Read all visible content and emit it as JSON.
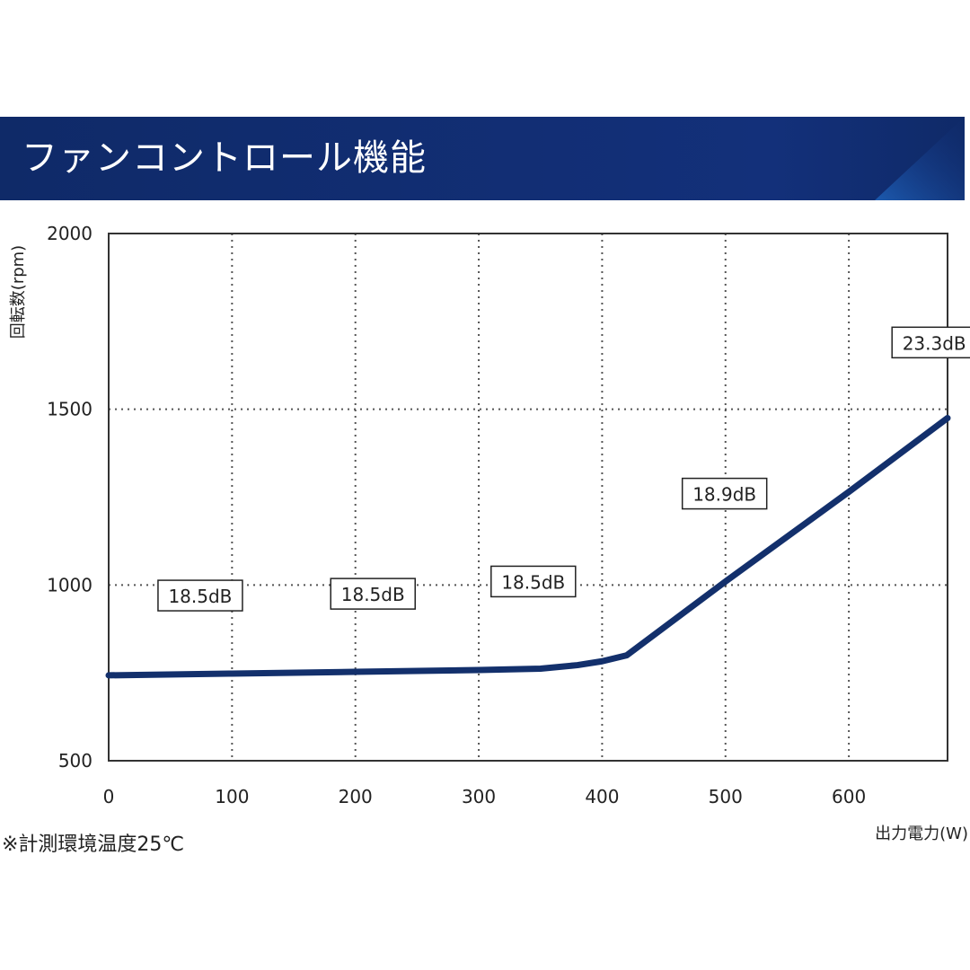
{
  "header": {
    "title": "ファンコントロール機能"
  },
  "footnote": "※計測環境温度25℃",
  "colors": {
    "banner": "#13307a",
    "line": "#13306c",
    "grid": "#555555"
  },
  "chart_data": {
    "type": "line",
    "title": "ファンコントロール機能",
    "xlabel": "出力電力(W)",
    "ylabel": "回転数(rpm)",
    "xlim": [
      0,
      680
    ],
    "ylim": [
      500,
      2000
    ],
    "xticks": [
      0,
      100,
      200,
      300,
      400,
      500,
      600
    ],
    "yticks": [
      500,
      1000,
      1500,
      2000
    ],
    "grid": true,
    "series": [
      {
        "values": [
          {
            "x": 0,
            "y": 743
          },
          {
            "x": 100,
            "y": 748
          },
          {
            "x": 200,
            "y": 753
          },
          {
            "x": 300,
            "y": 758
          },
          {
            "x": 350,
            "y": 762
          },
          {
            "x": 380,
            "y": 772
          },
          {
            "x": 400,
            "y": 783
          },
          {
            "x": 420,
            "y": 800
          },
          {
            "x": 500,
            "y": 1010
          },
          {
            "x": 600,
            "y": 1265
          },
          {
            "x": 680,
            "y": 1475
          }
        ]
      }
    ],
    "annotations": [
      {
        "text": "18.5dB",
        "x": 40,
        "y": 970
      },
      {
        "text": "18.5dB",
        "x": 180,
        "y": 975
      },
      {
        "text": "18.5dB",
        "x": 310,
        "y": 1010
      },
      {
        "text": "18.9dB",
        "x": 465,
        "y": 1260
      },
      {
        "text": "23.3dB",
        "x": 635,
        "y": 1690
      }
    ]
  }
}
